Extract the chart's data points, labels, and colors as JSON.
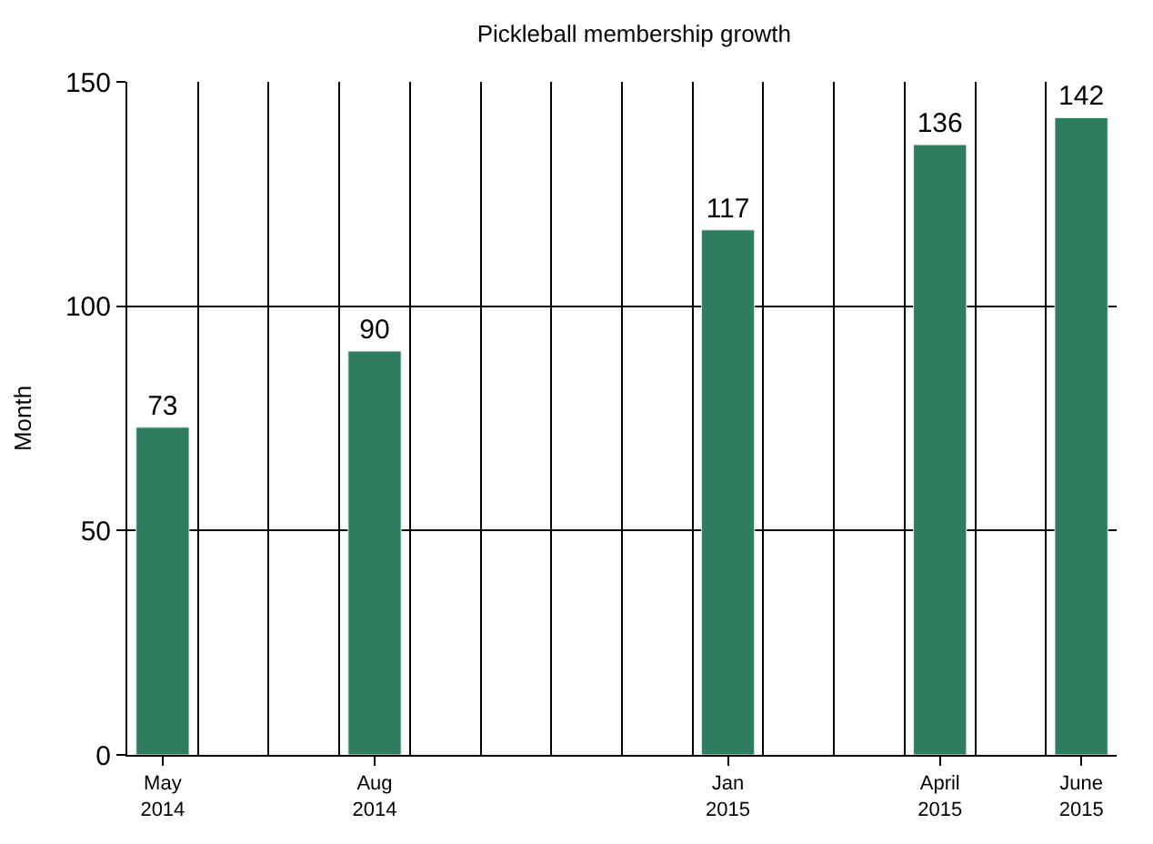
{
  "chart_data": {
    "type": "bar",
    "title": "Pickleball membership growth",
    "ylabel": "Month",
    "categories": [
      "May 2014",
      null,
      null,
      "Aug 2014",
      null,
      null,
      null,
      null,
      "Jan 2015",
      null,
      null,
      "April 2015",
      null,
      "June 2015"
    ],
    "values": [
      73,
      null,
      null,
      90,
      null,
      null,
      null,
      null,
      117,
      null,
      null,
      136,
      null,
      142
    ],
    "color": "#2e7d5e",
    "ylim": [
      0,
      150
    ],
    "yticks": [
      0,
      50,
      100,
      150
    ],
    "grid": true,
    "data_labels": true,
    "legend": false
  }
}
